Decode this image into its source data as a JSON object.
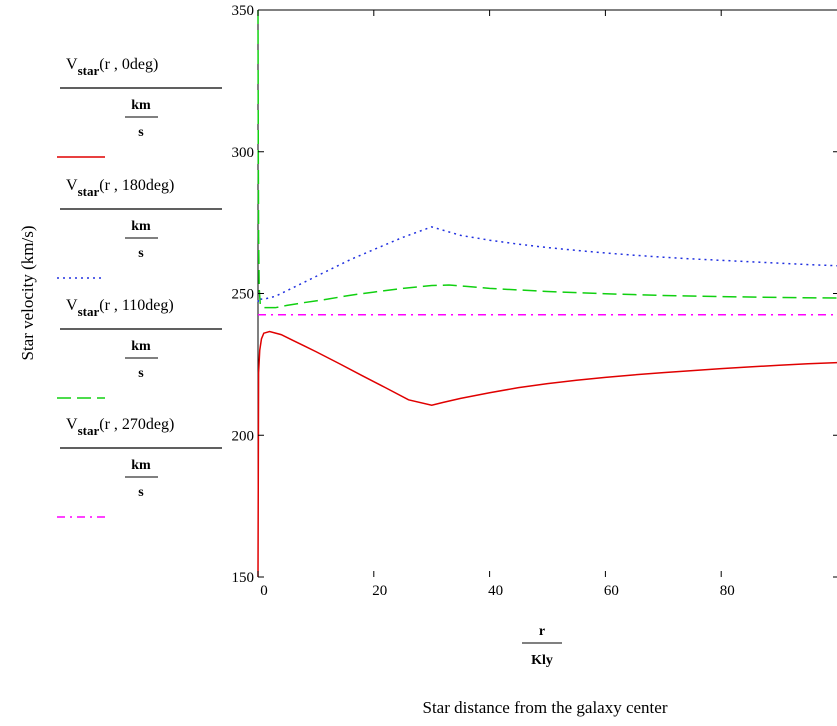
{
  "chart_data": {
    "type": "line",
    "xlabel": {
      "numerator": "r",
      "denominator": "Kly"
    },
    "ylabel": "Star velocity (km/s)",
    "caption": "Star distance from the galaxy center",
    "xlim": [
      0,
      100
    ],
    "ylim": [
      150,
      350
    ],
    "x_ticks": [
      0,
      20,
      40,
      60,
      80
    ],
    "y_ticks": [
      150,
      200,
      250,
      300,
      350
    ],
    "series": [
      {
        "name": "Vstar(r , 0deg)",
        "legend": {
          "v": "V",
          "sub": "star",
          "args": "(r , 0deg)",
          "num": "km",
          "den": "s"
        },
        "color": "#e00000",
        "style": "solid",
        "x": [
          0,
          0.1,
          0.3,
          0.6,
          1,
          2,
          4,
          6,
          8,
          10,
          14,
          18,
          22,
          26,
          30,
          32,
          35,
          40,
          45,
          50,
          55,
          60,
          65,
          70,
          75,
          80,
          85,
          90,
          95,
          100
        ],
        "y": [
          150,
          222,
          230,
          234,
          236,
          236.6,
          235.5,
          233.5,
          231.5,
          229.5,
          225.3,
          221,
          216.8,
          212.5,
          210.6,
          211.6,
          213,
          215,
          216.8,
          218.2,
          219.4,
          220.4,
          221.3,
          222.1,
          222.8,
          223.5,
          224.1,
          224.7,
          225.2,
          225.6
        ]
      },
      {
        "name": "Vstar(r , 180deg)",
        "legend": {
          "v": "V",
          "sub": "star",
          "args": "(r , 180deg)",
          "num": "km",
          "den": "s"
        },
        "color": "#2030e0",
        "style": "dotted",
        "x": [
          0,
          0.2,
          0.5,
          1,
          3,
          5,
          8,
          12,
          16,
          20,
          25,
          30,
          35,
          40,
          45,
          50,
          55,
          60,
          65,
          70,
          75,
          80,
          85,
          90,
          95,
          100
        ],
        "y": [
          247,
          248.5,
          248,
          248,
          249,
          251,
          254,
          258,
          262,
          265.5,
          269.8,
          273.5,
          270.5,
          268.8,
          267.4,
          266.2,
          265.2,
          264.3,
          263.5,
          262.8,
          262.2,
          261.7,
          261.2,
          260.7,
          260.2,
          259.8
        ]
      },
      {
        "name": "Vstar(r , 110deg)",
        "legend": {
          "v": "V",
          "sub": "star",
          "args": "(r , 110deg)",
          "num": "km",
          "den": "s"
        },
        "color": "#10d010",
        "style": "dashed",
        "x": [
          0,
          0.05,
          0.1,
          0.2,
          0.4,
          1,
          3,
          5,
          8,
          12,
          16,
          20,
          25,
          30,
          33,
          36,
          40,
          50,
          60,
          70,
          80,
          90,
          100
        ],
        "y": [
          350,
          300,
          270,
          252,
          246,
          245,
          245,
          245.8,
          246.8,
          248,
          249.4,
          250.5,
          251.8,
          252.8,
          253,
          252.5,
          251.8,
          250.7,
          249.9,
          249.3,
          248.9,
          248.6,
          248.4
        ]
      },
      {
        "name": "Vstar(r , 270deg)",
        "legend": {
          "v": "V",
          "sub": "star",
          "args": "(r , 270deg)",
          "num": "km",
          "den": "s"
        },
        "color": "#ff00ff",
        "style": "dashdot",
        "x": [
          0,
          100
        ],
        "y": [
          242.5,
          242.5
        ]
      }
    ]
  }
}
